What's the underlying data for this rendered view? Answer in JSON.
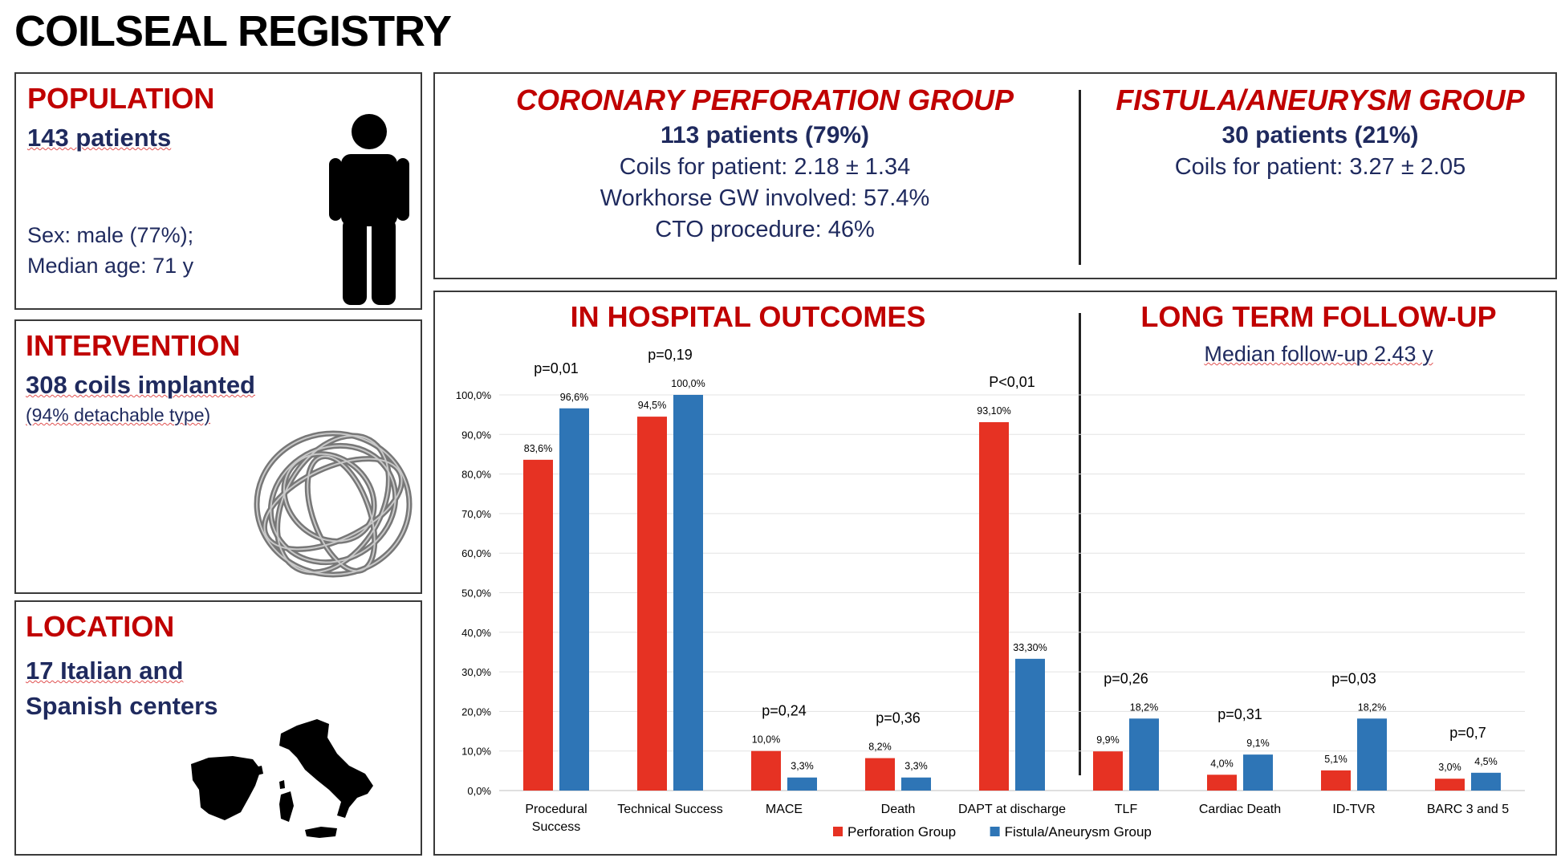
{
  "title": "COILSEAL REGISTRY",
  "population": {
    "heading": "POPULATION",
    "count": "143 patients",
    "sex": "Sex: male (77%);",
    "age": "Median age: 71 y",
    "icon": "person-icon"
  },
  "intervention": {
    "heading": "INTERVENTION",
    "coils": "308 coils implanted",
    "detail": "(94% detachable type)",
    "icon": "coil-icon"
  },
  "location": {
    "heading": "LOCATION",
    "line1": "17 Italian and",
    "line2": "Spanish centers",
    "icon": "spain-italy-map-icon"
  },
  "perforation_group": {
    "heading": "CORONARY PERFORATION GROUP",
    "patients": "113 patients (79%)",
    "coils": "Coils for patient: 2.18 ± 1.34",
    "workhorse": "Workhorse GW involved: 57.4%",
    "cto": "CTO procedure: 46%"
  },
  "fistula_group": {
    "heading": "FISTULA/ANEURYSM GROUP",
    "patients": "30 patients (21%)",
    "coils": "Coils for patient: 3.27 ± 2.05"
  },
  "outcomes": {
    "in_hospital_heading": "IN HOSPITAL OUTCOMES",
    "long_term_heading": "LONG TERM FOLLOW-UP",
    "long_term_sub": "Median follow-up 2.43 y"
  },
  "colors": {
    "perforation": "#e63223",
    "fistula": "#2e75b6",
    "heading_red": "#c00000",
    "navy": "#1f2a5e"
  },
  "chart_data": {
    "type": "bar",
    "categories": [
      "Procedural Success",
      "Technical Success",
      "MACE",
      "Death",
      "DAPT at discharge",
      "TLF",
      "Cardiac Death",
      "ID-TVR",
      "BARC 3 and 5"
    ],
    "category_lines": [
      [
        "Procedural",
        "Success"
      ],
      [
        "Technical Success"
      ],
      [
        "MACE"
      ],
      [
        "Death"
      ],
      [
        "DAPT at discharge"
      ],
      [
        "TLF"
      ],
      [
        "Cardiac Death"
      ],
      [
        "ID-TVR"
      ],
      [
        "BARC 3 and 5"
      ]
    ],
    "series": [
      {
        "name": "Perforation Group",
        "values": [
          83.6,
          94.5,
          10.0,
          8.2,
          93.1,
          9.9,
          4.0,
          5.1,
          3.0
        ],
        "labels": [
          "83,6%",
          "94,5%",
          "10,0%",
          "8,2%",
          "93,10%",
          "9,9%",
          "4,0%",
          "5,1%",
          "3,0%"
        ]
      },
      {
        "name": "Fistula/Aneurysm Group",
        "values": [
          96.6,
          100.0,
          3.3,
          3.3,
          33.3,
          18.2,
          9.1,
          18.2,
          4.5
        ],
        "labels": [
          "96,6%",
          "100,0%",
          "3,3%",
          "3,3%",
          "33,30%",
          "18,2%",
          "9,1%",
          "18,2%",
          "4,5%"
        ]
      }
    ],
    "p_values": [
      "p=0,01",
      "p=0,19",
      "p=0,24",
      "p=0,36",
      "P<0,01",
      "p=0,26",
      "p=0,31",
      "p=0,03",
      "p=0,7"
    ],
    "yticks": [
      "0,0%",
      "10,0%",
      "20,0%",
      "30,0%",
      "40,0%",
      "50,0%",
      "60,0%",
      "70,0%",
      "80,0%",
      "90,0%",
      "100,0%"
    ],
    "ylim": [
      0,
      100
    ],
    "grid": true,
    "legend_position": "bottom"
  }
}
